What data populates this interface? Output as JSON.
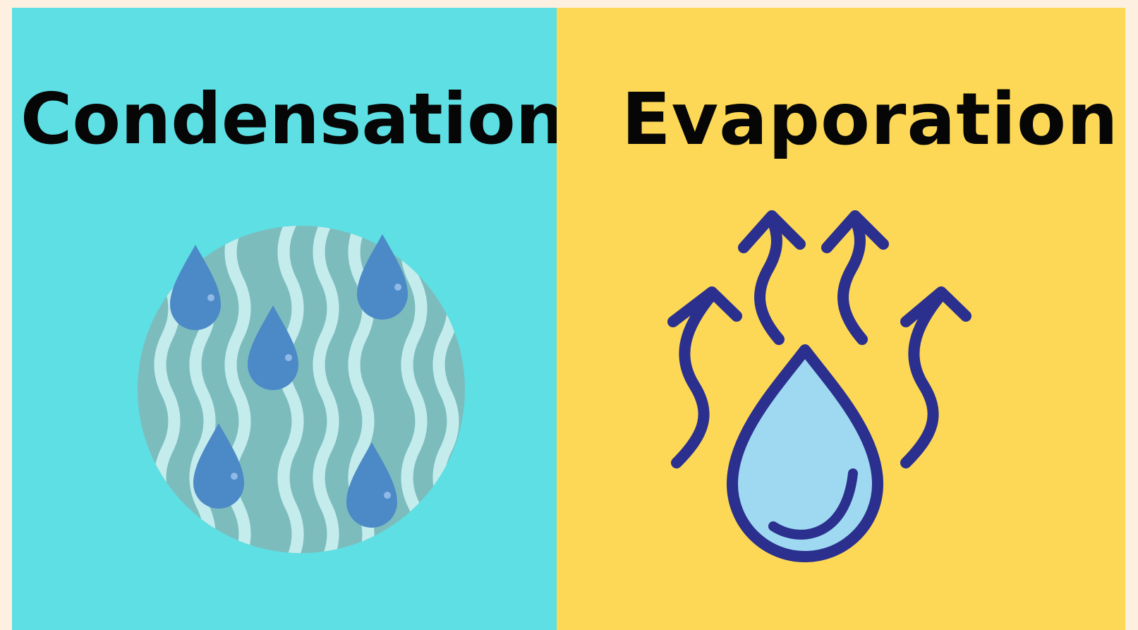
{
  "panels": {
    "left": {
      "title": "Condensation",
      "icon": "condensation-icon",
      "background": "#5ddfe4"
    },
    "right": {
      "title": "Evaporation",
      "icon": "evaporation-icon",
      "background": "#fdd856"
    }
  },
  "colors": {
    "page_background": "#fdf0e1",
    "circle": "#7dbcbd",
    "waves": "#c5ecec",
    "droplets": "#4c89c7",
    "evap_stroke": "#2b2f8e",
    "evap_fill": "#9ed9f1"
  }
}
